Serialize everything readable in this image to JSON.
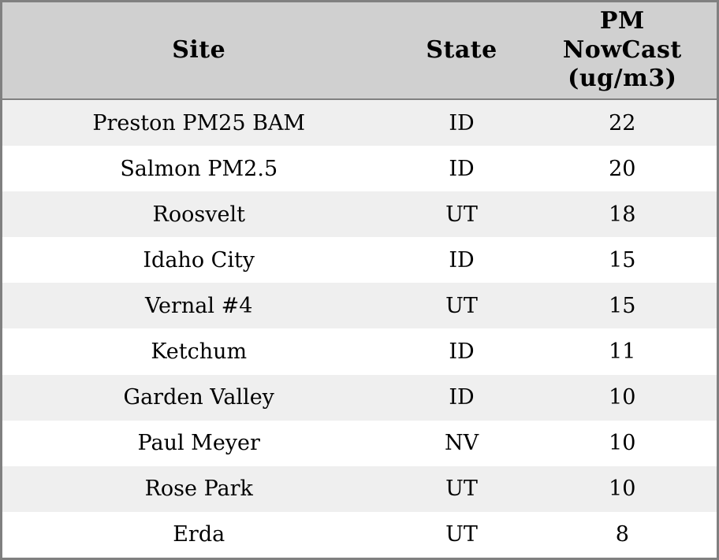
{
  "chart_data": {
    "type": "table",
    "columns": [
      "Site",
      "State",
      "PM NowCast (ug/m3)"
    ],
    "column_ids": [
      "site",
      "state",
      "pm-nowcast"
    ],
    "rows": [
      [
        "Preston PM25 BAM",
        "ID",
        22
      ],
      [
        "Salmon PM2.5",
        "ID",
        20
      ],
      [
        "Roosvelt",
        "UT",
        18
      ],
      [
        "Idaho City",
        "ID",
        15
      ],
      [
        "Vernal #4",
        "UT",
        15
      ],
      [
        "Ketchum",
        "ID",
        11
      ],
      [
        "Garden Valley",
        "ID",
        10
      ],
      [
        "Paul Meyer",
        "NV",
        10
      ],
      [
        "Rose Park",
        "UT",
        10
      ],
      [
        "Erda",
        "UT",
        8
      ]
    ]
  },
  "colors": {
    "header_bg": "#d0d0d0",
    "row_alt_bg": "#efefef",
    "row_bg": "#ffffff",
    "border": "#808080",
    "text": "#000000"
  }
}
